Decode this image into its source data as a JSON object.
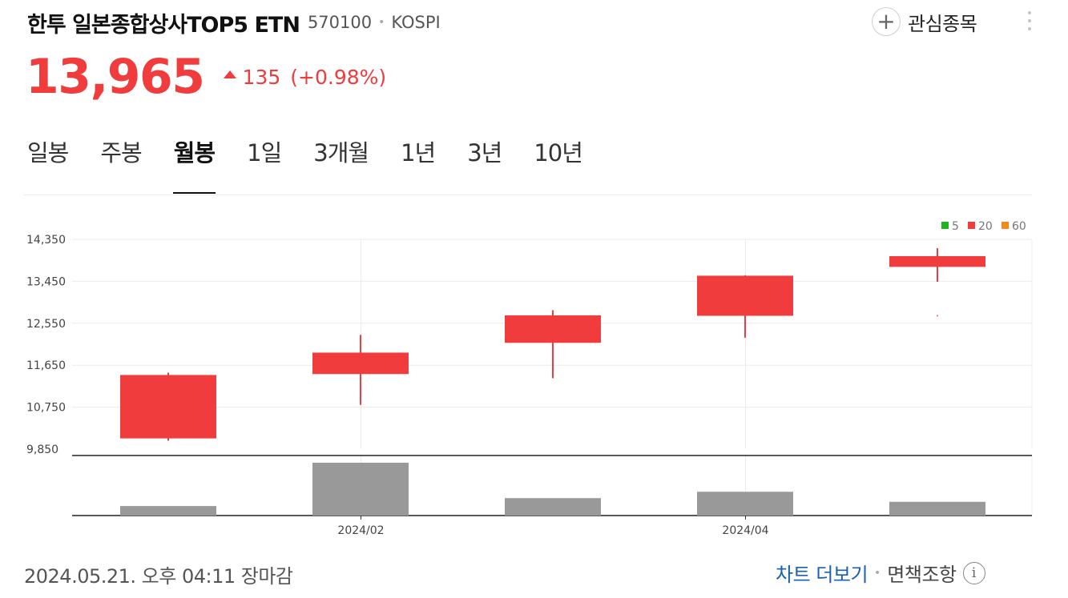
{
  "header": {
    "title": "한투 일본종합상사TOP5 ETN",
    "code": "570100",
    "market": "KOSPI",
    "separator": "•"
  },
  "actions": {
    "plus_symbol": "+",
    "watchlist_label": "관심종목",
    "more_icon": "more-vertical-icon"
  },
  "quote": {
    "price": "13,965",
    "change": "135",
    "change_pct": "(+0.98%)",
    "direction_icon": "triangle-up-icon",
    "color_up": "#f03c3c"
  },
  "tabs": [
    {
      "label": "일봉"
    },
    {
      "label": "주봉"
    },
    {
      "label": "월봉",
      "active": true
    },
    {
      "label": "1일"
    },
    {
      "label": "3개월"
    },
    {
      "label": "1년"
    },
    {
      "label": "3년"
    },
    {
      "label": "10년"
    }
  ],
  "chart_data": {
    "type": "candlestick",
    "yticks": [
      "14,350",
      "13,450",
      "12,550",
      "11,650",
      "10,750",
      "9,850"
    ],
    "ylim": [
      9850,
      14350
    ],
    "xtick_labels": [
      {
        "label": "2024/02",
        "index": 1
      },
      {
        "label": "2024/04",
        "index": 3
      }
    ],
    "legend": [
      {
        "label": "5",
        "color": "#1fb51f"
      },
      {
        "label": "20",
        "color": "#f03c3c"
      },
      {
        "label": "60",
        "color": "#f08c1e"
      }
    ],
    "candles": [
      {
        "open": 10080,
        "high": 11490,
        "low": 10030,
        "close": 11440,
        "volume": 0.18
      },
      {
        "open": 11460,
        "high": 12300,
        "low": 10800,
        "close": 11920,
        "volume": 1.0
      },
      {
        "open": 12130,
        "high": 12830,
        "low": 11370,
        "close": 12720,
        "volume": 0.33
      },
      {
        "open": 12710,
        "high": 13580,
        "low": 12240,
        "close": 13570,
        "volume": 0.45
      },
      {
        "open": 13760,
        "high": 14160,
        "low": 13440,
        "close": 13990,
        "volume": 0.26
      }
    ],
    "stray_mark": {
      "index": 4,
      "value": 12710
    },
    "up_color": "#f03c3c",
    "volume_color": "#999999",
    "grid": true
  },
  "footer": {
    "timestamp": "2024.05.21. 오후 04:11 장마감",
    "chart_more": "차트 더보기",
    "separator": "•",
    "disclaimer": "면책조항",
    "info_symbol": "i"
  }
}
